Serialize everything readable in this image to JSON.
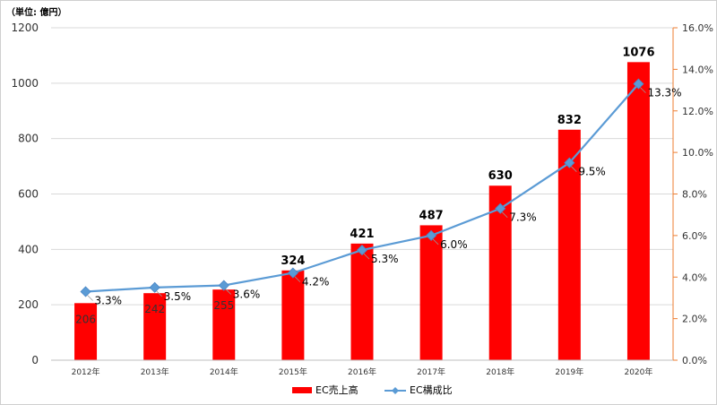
{
  "chart_data": {
    "type": "bar",
    "unit_label": "（単位: 億円）",
    "categories": [
      "2012年",
      "2013年",
      "2014年",
      "2015年",
      "2016年",
      "2017年",
      "2018年",
      "2019年",
      "2020年"
    ],
    "series": [
      {
        "name": "EC売上高",
        "type": "bar",
        "axis": "left",
        "color": "#ff0000",
        "values": [
          206,
          242,
          255,
          324,
          421,
          487,
          630,
          832,
          1076
        ],
        "labels": [
          "206",
          "242",
          "255",
          "324",
          "421",
          "487",
          "630",
          "832",
          "1076"
        ]
      },
      {
        "name": "EC構成比",
        "type": "line",
        "axis": "right",
        "color": "#5b9bd5",
        "values": [
          3.3,
          3.5,
          3.6,
          4.2,
          5.3,
          6.0,
          7.3,
          9.5,
          13.3
        ],
        "labels": [
          "3.3%",
          "3.5%",
          "3.6%",
          "4.2%",
          "5.3%",
          "6.0%",
          "7.3%",
          "9.5%",
          "13.3%"
        ]
      }
    ],
    "y_left": {
      "min": 0,
      "max": 1200,
      "ticks": [
        "0",
        "200",
        "400",
        "600",
        "800",
        "1000",
        "1200"
      ]
    },
    "y_right": {
      "min": 0,
      "max": 16,
      "ticks": [
        "0.0%",
        "2.0%",
        "4.0%",
        "6.0%",
        "8.0%",
        "10.0%",
        "12.0%",
        "14.0%",
        "16.0%"
      ],
      "axis_color": "#ed7d31"
    },
    "grid": true,
    "legend_position": "bottom"
  }
}
